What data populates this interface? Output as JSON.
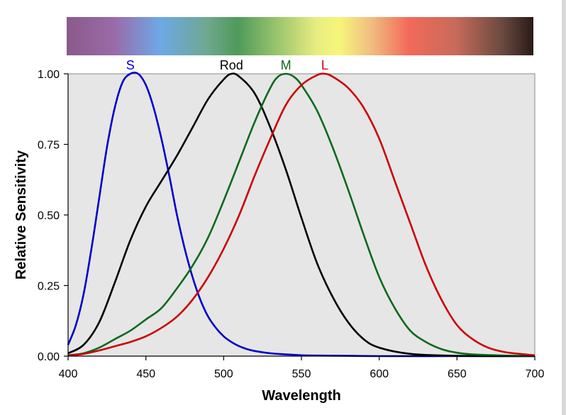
{
  "chart_data": {
    "type": "line",
    "title": "",
    "xlabel": "Wavelength",
    "ylabel": "Relative Sensitivity",
    "xlim": [
      400,
      700
    ],
    "ylim": [
      0,
      1
    ],
    "x_ticks": [
      "400",
      "450",
      "500",
      "550",
      "600",
      "650",
      "700"
    ],
    "y_ticks": [
      "0.00",
      "0.25",
      "0.50",
      "0.75",
      "1.00"
    ],
    "grid": false,
    "plot_background": "#e6e6e6",
    "spectrum_bar": {
      "stops": [
        {
          "wavelength": 400,
          "color": "#8a5a8a"
        },
        {
          "wavelength": 430,
          "color": "#9a6aa8"
        },
        {
          "wavelength": 460,
          "color": "#6ea8e6"
        },
        {
          "wavelength": 490,
          "color": "#6fa890"
        },
        {
          "wavelength": 510,
          "color": "#4f9a5a"
        },
        {
          "wavelength": 540,
          "color": "#a8cc70"
        },
        {
          "wavelength": 560,
          "color": "#e6ec80"
        },
        {
          "wavelength": 575,
          "color": "#f6f67a"
        },
        {
          "wavelength": 595,
          "color": "#f0c080"
        },
        {
          "wavelength": 620,
          "color": "#f26a5a"
        },
        {
          "wavelength": 650,
          "color": "#c86a5a"
        },
        {
          "wavelength": 680,
          "color": "#6a4a40"
        },
        {
          "wavelength": 700,
          "color": "#2a1a18"
        }
      ]
    },
    "series": [
      {
        "name": "S",
        "color": "#0000cc",
        "x": [
          400,
          405,
          410,
          415,
          420,
          425,
          430,
          435,
          440,
          445,
          450,
          455,
          460,
          465,
          470,
          475,
          480,
          485,
          490,
          495,
          500,
          505,
          510,
          515,
          520,
          530,
          540,
          550,
          560,
          580,
          600,
          650,
          700
        ],
        "y": [
          0.04,
          0.11,
          0.22,
          0.38,
          0.56,
          0.74,
          0.88,
          0.97,
          1.0,
          1.0,
          0.96,
          0.88,
          0.77,
          0.64,
          0.5,
          0.38,
          0.28,
          0.2,
          0.14,
          0.1,
          0.07,
          0.05,
          0.035,
          0.025,
          0.018,
          0.01,
          0.006,
          0.003,
          0.002,
          0.001,
          0.0,
          0.0,
          0.0
        ]
      },
      {
        "name": "Rod",
        "color": "#000000",
        "x": [
          400,
          410,
          420,
          430,
          440,
          450,
          460,
          470,
          480,
          490,
          500,
          505,
          510,
          520,
          530,
          540,
          550,
          560,
          570,
          580,
          590,
          600,
          620,
          650,
          700
        ],
        "y": [
          0.01,
          0.04,
          0.12,
          0.26,
          0.41,
          0.53,
          0.62,
          0.71,
          0.81,
          0.91,
          0.98,
          1.0,
          0.99,
          0.93,
          0.81,
          0.66,
          0.49,
          0.33,
          0.21,
          0.12,
          0.06,
          0.03,
          0.008,
          0.001,
          0.0
        ]
      },
      {
        "name": "M",
        "color": "#0a6a1a",
        "x": [
          400,
          410,
          420,
          430,
          440,
          450,
          460,
          470,
          480,
          490,
          500,
          510,
          520,
          530,
          535,
          540,
          545,
          550,
          560,
          570,
          580,
          590,
          600,
          610,
          620,
          630,
          640,
          650,
          660,
          680,
          700
        ],
        "y": [
          0.003,
          0.01,
          0.03,
          0.06,
          0.09,
          0.13,
          0.17,
          0.24,
          0.32,
          0.42,
          0.55,
          0.69,
          0.83,
          0.95,
          0.99,
          1.0,
          0.99,
          0.96,
          0.87,
          0.74,
          0.59,
          0.43,
          0.28,
          0.17,
          0.09,
          0.05,
          0.025,
          0.012,
          0.006,
          0.002,
          0.0
        ]
      },
      {
        "name": "L",
        "color": "#cc0000",
        "x": [
          400,
          410,
          420,
          430,
          440,
          450,
          460,
          470,
          480,
          490,
          500,
          510,
          520,
          530,
          540,
          550,
          560,
          565,
          570,
          580,
          590,
          600,
          610,
          620,
          630,
          640,
          650,
          660,
          670,
          680,
          690,
          700
        ],
        "y": [
          0.002,
          0.008,
          0.02,
          0.035,
          0.05,
          0.07,
          0.1,
          0.14,
          0.2,
          0.28,
          0.38,
          0.5,
          0.64,
          0.77,
          0.89,
          0.96,
          0.995,
          1.0,
          0.99,
          0.95,
          0.88,
          0.77,
          0.62,
          0.47,
          0.32,
          0.2,
          0.11,
          0.06,
          0.03,
          0.015,
          0.008,
          0.003
        ]
      }
    ]
  }
}
